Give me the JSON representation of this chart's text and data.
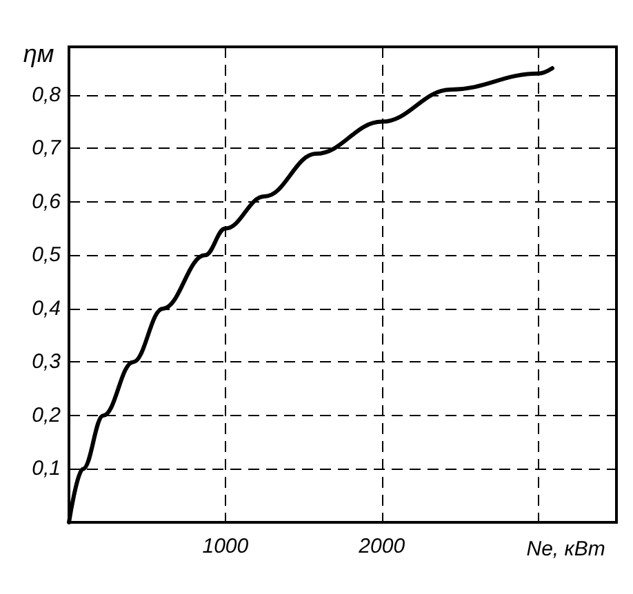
{
  "chart_data": {
    "type": "line",
    "xlabel": "Nе, кВт",
    "ylabel": "ηм",
    "x": [
      0,
      90,
      220,
      410,
      600,
      870,
      1000,
      1250,
      1580,
      2000,
      2440,
      3000,
      3090
    ],
    "series": [
      {
        "color": "#000000",
        "values": [
          0,
          0.1,
          0.2,
          0.3,
          0.4,
          0.5,
          0.55,
          0.61,
          0.69,
          0.75,
          0.81,
          0.84,
          0.85
        ]
      }
    ],
    "xlim": [
      0,
      3500
    ],
    "xticks": [
      1000,
      2000,
      {
        "value": 3000,
        "label": null
      }
    ],
    "ylim": [
      0,
      0.89
    ],
    "yticks": [
      {
        "value": 0.1,
        "label": "0,1"
      },
      {
        "value": 0.2,
        "label": "0,2"
      },
      {
        "value": 0.3,
        "label": "0,3"
      },
      {
        "value": 0.4,
        "label": "0,4"
      },
      {
        "value": 0.5,
        "label": "0,5"
      },
      {
        "value": 0.6,
        "label": "0,6"
      },
      {
        "value": 0.7,
        "label": "0,7"
      },
      {
        "value": 0.8,
        "label": "0,8"
      }
    ],
    "grid": true,
    "marker": "none",
    "line_style": "solid"
  }
}
